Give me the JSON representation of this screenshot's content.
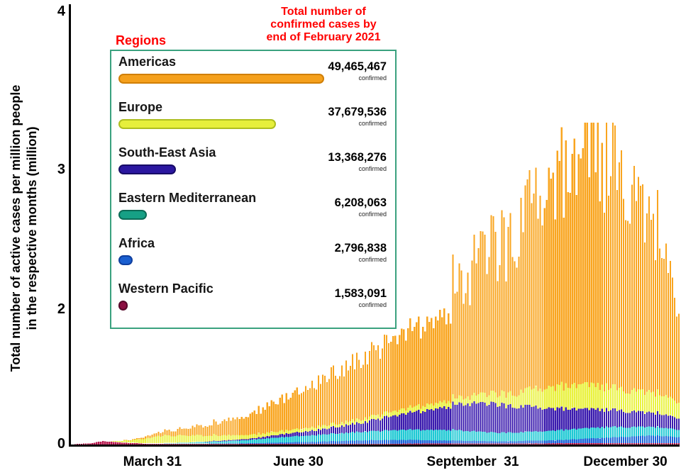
{
  "colors": {
    "accent_red": "#FF0000",
    "axis": "#000000",
    "legend_border": "#3AA17E",
    "background": "#FFFFFF"
  },
  "y_axis": {
    "label_line1": "Total number of active cases  per million people",
    "label_line2": "in the respective months (million)",
    "ticks": [
      {
        "value": 0,
        "label": "0"
      },
      {
        "value": 2,
        "label": "2"
      },
      {
        "value": 3,
        "label": "3"
      },
      {
        "value": 4,
        "label": "4"
      }
    ]
  },
  "x_axis": {
    "ticks": [
      {
        "label": "March 31",
        "f": 0.134
      },
      {
        "label": "June 30",
        "f": 0.374
      },
      {
        "label": "September  31",
        "f": 0.661
      },
      {
        "label": "December 30",
        "f": 0.912
      }
    ]
  },
  "legend": {
    "title": "Regions",
    "header_lines": [
      "Total number of",
      "confirmed cases by",
      "end of February 2021"
    ],
    "confirmed_label": "confirmed",
    "regions": [
      {
        "name": "Americas",
        "cases": "49,465,467",
        "color": "#F5A01C",
        "border": "#D07F07"
      },
      {
        "name": "Europe",
        "cases": "37,679,536",
        "color": "#E6EF3B",
        "border": "#AEBE1F"
      },
      {
        "name": "South-East Asia",
        "cases": "13,368,276",
        "color": "#2B17A0",
        "border": "#170B66"
      },
      {
        "name": "Eastern Mediterranean",
        "cases": "6,208,063",
        "color": "#16A085",
        "border": "#0C6B56"
      },
      {
        "name": "Africa",
        "cases": "2,796,838",
        "color": "#1A5FD0",
        "border": "#0F3F9E"
      },
      {
        "name": "Western Pacific",
        "cases": "1,583,091",
        "color": "#8C0F42",
        "border": "#57082A"
      }
    ]
  },
  "chart_data": {
    "type": "bar",
    "stacked": true,
    "title": "",
    "ylabel": "Total number of active cases per million people in the respective months (million)",
    "ylim": [
      0,
      4
    ],
    "y_tick_labels": [
      "0",
      "2",
      "3",
      "4"
    ],
    "x_tick_labels": [
      "March 31",
      "June 30",
      "September  31",
      "December 30"
    ],
    "x_unit": "fraction of time axis (daily bars, early 2020 through early 2021)",
    "value_unit": "million active cases per million people",
    "bar_count": 285,
    "stack_order_bottom_to_top": [
      "Western Pacific",
      "Africa",
      "Eastern Mediterranean",
      "South-East Asia",
      "Europe",
      "Americas"
    ],
    "jitter_weights": {
      "americas": 1,
      "europe": 0.85,
      "sea": 0.6,
      "em": 0.45,
      "africa": 0.45,
      "wp": 0.4
    },
    "series": [
      {
        "key": "wp",
        "name": "Western Pacific",
        "color": "#B5164C",
        "points": [
          [
            0,
            0.004
          ],
          [
            0.03,
            0.02
          ],
          [
            0.05,
            0.05
          ],
          [
            0.08,
            0.03
          ],
          [
            0.12,
            0.012
          ],
          [
            0.3,
            0.01
          ],
          [
            0.5,
            0.012
          ],
          [
            0.7,
            0.016
          ],
          [
            0.85,
            0.02
          ],
          [
            1,
            0.02
          ]
        ]
      },
      {
        "key": "africa",
        "name": "Africa",
        "color": "#1C64D9",
        "points": [
          [
            0,
            0
          ],
          [
            0.2,
            0.004
          ],
          [
            0.3,
            0.01
          ],
          [
            0.4,
            0.03
          ],
          [
            0.48,
            0.05
          ],
          [
            0.55,
            0.055
          ],
          [
            0.62,
            0.045
          ],
          [
            0.7,
            0.03
          ],
          [
            0.8,
            0.045
          ],
          [
            0.9,
            0.09
          ],
          [
            0.95,
            0.11
          ],
          [
            1,
            0.09
          ]
        ]
      },
      {
        "key": "em",
        "name": "Eastern Mediterranean",
        "color": "#1FC9D4",
        "points": [
          [
            0,
            0
          ],
          [
            0.15,
            0.005
          ],
          [
            0.25,
            0.03
          ],
          [
            0.35,
            0.08
          ],
          [
            0.45,
            0.12
          ],
          [
            0.55,
            0.15
          ],
          [
            0.62,
            0.16
          ],
          [
            0.68,
            0.13
          ],
          [
            0.75,
            0.13
          ],
          [
            0.82,
            0.15
          ],
          [
            0.88,
            0.16
          ],
          [
            0.93,
            0.14
          ],
          [
            1,
            0.11
          ]
        ]
      },
      {
        "key": "sea",
        "name": "South-East Asia",
        "color": "#3A1AAE",
        "points": [
          [
            0,
            0
          ],
          [
            0.2,
            0.003
          ],
          [
            0.3,
            0.02
          ],
          [
            0.4,
            0.07
          ],
          [
            0.48,
            0.14
          ],
          [
            0.55,
            0.24
          ],
          [
            0.6,
            0.32
          ],
          [
            0.65,
            0.4
          ],
          [
            0.7,
            0.42
          ],
          [
            0.75,
            0.37
          ],
          [
            0.8,
            0.32
          ],
          [
            0.85,
            0.28
          ],
          [
            0.9,
            0.25
          ],
          [
            0.95,
            0.21
          ],
          [
            1,
            0.17
          ]
        ]
      },
      {
        "key": "europe",
        "name": "Europe",
        "color": "#E9F23F",
        "points": [
          [
            0.06,
            0.002
          ],
          [
            0.1,
            0.04
          ],
          [
            0.14,
            0.1
          ],
          [
            0.18,
            0.11
          ],
          [
            0.24,
            0.08
          ],
          [
            0.32,
            0.05
          ],
          [
            0.45,
            0.05
          ],
          [
            0.55,
            0.07
          ],
          [
            0.65,
            0.1
          ],
          [
            0.72,
            0.18
          ],
          [
            0.78,
            0.3
          ],
          [
            0.84,
            0.36
          ],
          [
            0.9,
            0.33
          ],
          [
            0.95,
            0.3
          ],
          [
            1,
            0.24
          ]
        ]
      },
      {
        "key": "americas",
        "name": "Americas",
        "color": "#F9A51F",
        "points": [
          [
            0.05,
            0.001
          ],
          [
            0.1,
            0.008
          ],
          [
            0.14,
            0.05
          ],
          [
            0.18,
            0.1
          ],
          [
            0.23,
            0.17
          ],
          [
            0.28,
            0.28
          ],
          [
            0.33,
            0.42
          ],
          [
            0.374,
            0.55
          ],
          [
            0.42,
            0.72
          ],
          [
            0.47,
            0.88
          ],
          [
            0.52,
            1.02
          ],
          [
            0.57,
            1.18
          ],
          [
            0.62,
            1.35
          ],
          [
            0.661,
            1.55
          ],
          [
            0.7,
            1.7
          ],
          [
            0.74,
            1.85
          ],
          [
            0.78,
            2.0
          ],
          [
            0.82,
            2.1
          ],
          [
            0.86,
            2.2
          ],
          [
            0.9,
            2.2
          ],
          [
            0.93,
            2.05
          ],
          [
            0.96,
            1.75
          ],
          [
            1,
            1.35
          ]
        ]
      }
    ]
  }
}
